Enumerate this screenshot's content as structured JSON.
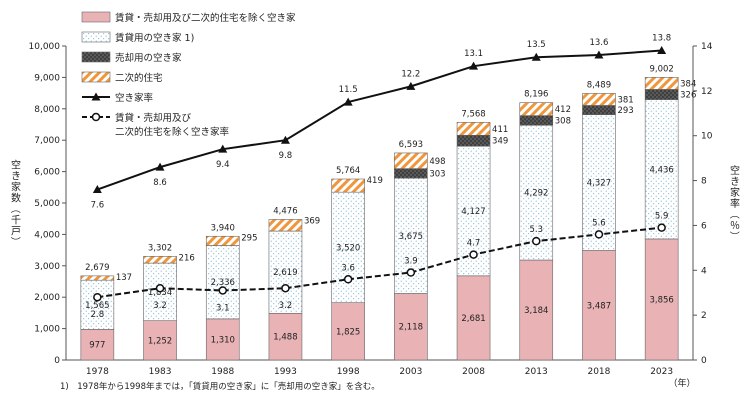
{
  "chart_data": {
    "type": "bar",
    "stacked": true,
    "categories": [
      "1978",
      "1983",
      "1988",
      "1993",
      "1998",
      "2003",
      "2008",
      "2013",
      "2018",
      "2023"
    ],
    "x_unit": "（年）",
    "series": [
      {
        "name": "賃貸・売却用及び二次的住宅を除く空き家",
        "values": [
          977,
          1252,
          1310,
          1488,
          1825,
          2118,
          2681,
          3184,
          3487,
          3856
        ],
        "labels": [
          "977",
          "1,252",
          "1,310",
          "1,488",
          "1,825",
          "2,118",
          "2,681",
          "3,184",
          "3,487",
          "3,856"
        ],
        "color": "#e8b4b8"
      },
      {
        "name": "賃貸用の空き家 1)",
        "values": [
          1565,
          1834,
          2336,
          2619,
          3520,
          3675,
          4127,
          4292,
          4327,
          4436
        ],
        "labels": [
          "1,565",
          "1,834",
          "2,336",
          "2,619",
          "3,520",
          "3,675",
          "4,127",
          "4,292",
          "4,327",
          "4,436"
        ],
        "color": "#ffffff"
      },
      {
        "name": "売却用の空き家",
        "values": [
          0,
          0,
          0,
          0,
          0,
          303,
          349,
          308,
          293,
          326
        ],
        "labels": [
          "",
          "",
          "",
          "",
          "",
          "303",
          "349",
          "308",
          "293",
          "326"
        ],
        "color": "#4a4a4a"
      },
      {
        "name": "二次的住宅",
        "values": [
          137,
          216,
          295,
          369,
          419,
          498,
          411,
          412,
          381,
          384
        ],
        "labels": [
          "137",
          "216",
          "295",
          "369",
          "419",
          "498",
          "411",
          "412",
          "381",
          "384"
        ],
        "color": "#f4a460"
      }
    ],
    "totals": [
      2679,
      3302,
      3940,
      4476,
      5764,
      6593,
      7568,
      8196,
      8489,
      9002
    ],
    "totals_labels": [
      "2,679",
      "3,302",
      "3,940",
      "4,476",
      "5,764",
      "6,593",
      "7,568",
      "8,196",
      "8,489",
      "9,002"
    ],
    "lines": [
      {
        "name": "空き家率",
        "values": [
          7.6,
          8.6,
          9.4,
          9.8,
          11.5,
          12.2,
          13.1,
          13.5,
          13.6,
          13.8
        ],
        "labels": [
          "7.6",
          "8.6",
          "9.4",
          "9.8",
          "11.5",
          "12.2",
          "13.1",
          "13.5",
          "13.6",
          "13.8"
        ],
        "style": "solid-triangle"
      },
      {
        "name": "賃貸・売却用及び\n二次的住宅を除く空き家率",
        "values": [
          2.8,
          3.2,
          3.1,
          3.2,
          3.6,
          3.9,
          4.7,
          5.3,
          5.6,
          5.9
        ],
        "labels": [
          "2.8",
          "3.2",
          "3.1",
          "3.2",
          "3.6",
          "3.9",
          "4.7",
          "5.3",
          "5.6",
          "5.9"
        ],
        "style": "dashed-circle"
      }
    ],
    "ylabel_left": "空き家数（千戸）",
    "ylabel_right": "空き家率（％）",
    "ylim_left": [
      0,
      10000
    ],
    "ylim_right": [
      0,
      14
    ],
    "yticks_left": [
      "0",
      "1,000",
      "2,000",
      "3,000",
      "4,000",
      "5,000",
      "6,000",
      "7,000",
      "8,000",
      "9,000",
      "10,000"
    ],
    "yticks_right": [
      "0",
      "2",
      "4",
      "6",
      "8",
      "10",
      "12",
      "14"
    ],
    "legend_position": "top-left",
    "footnote": "1)　1978年から1998年までは，「賃貸用の空き家」に「売却用の空き家」を含む。"
  }
}
